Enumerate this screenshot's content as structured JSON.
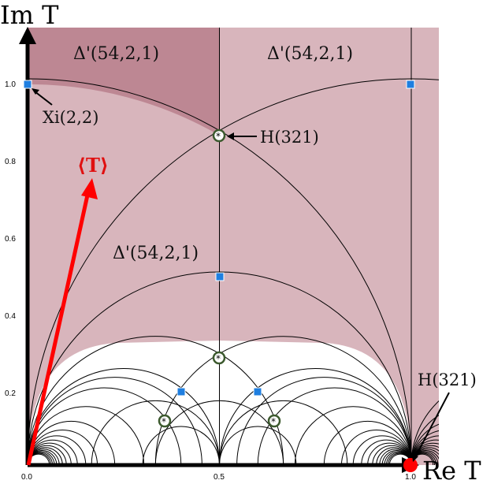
{
  "axes": {
    "y_title": "Im T",
    "x_title": "Re T",
    "x_ticks": [
      "0.0",
      "0.5",
      "1.0"
    ],
    "y_ticks": [
      "0.2",
      "0.4",
      "0.6",
      "0.8",
      "1.0"
    ]
  },
  "regions": {
    "top_left_label": "Δ'(54,2,1)",
    "top_right_label": "Δ'(54,2,1)",
    "middle_label": "Δ'(54,2,1)"
  },
  "annotations": {
    "xi_label": "Xi(2,2)",
    "h_label_upper": "H(321)",
    "h_label_lower": "H(321)",
    "vev_label": "⟨T⟩"
  },
  "colors": {
    "shaded_region": "#d8b5bc",
    "dark_region": "#b87f8c",
    "arrow": "#ff0000",
    "square_marker": "#1f7fe0",
    "circle_marker_ring": "#3c5a2e"
  }
}
